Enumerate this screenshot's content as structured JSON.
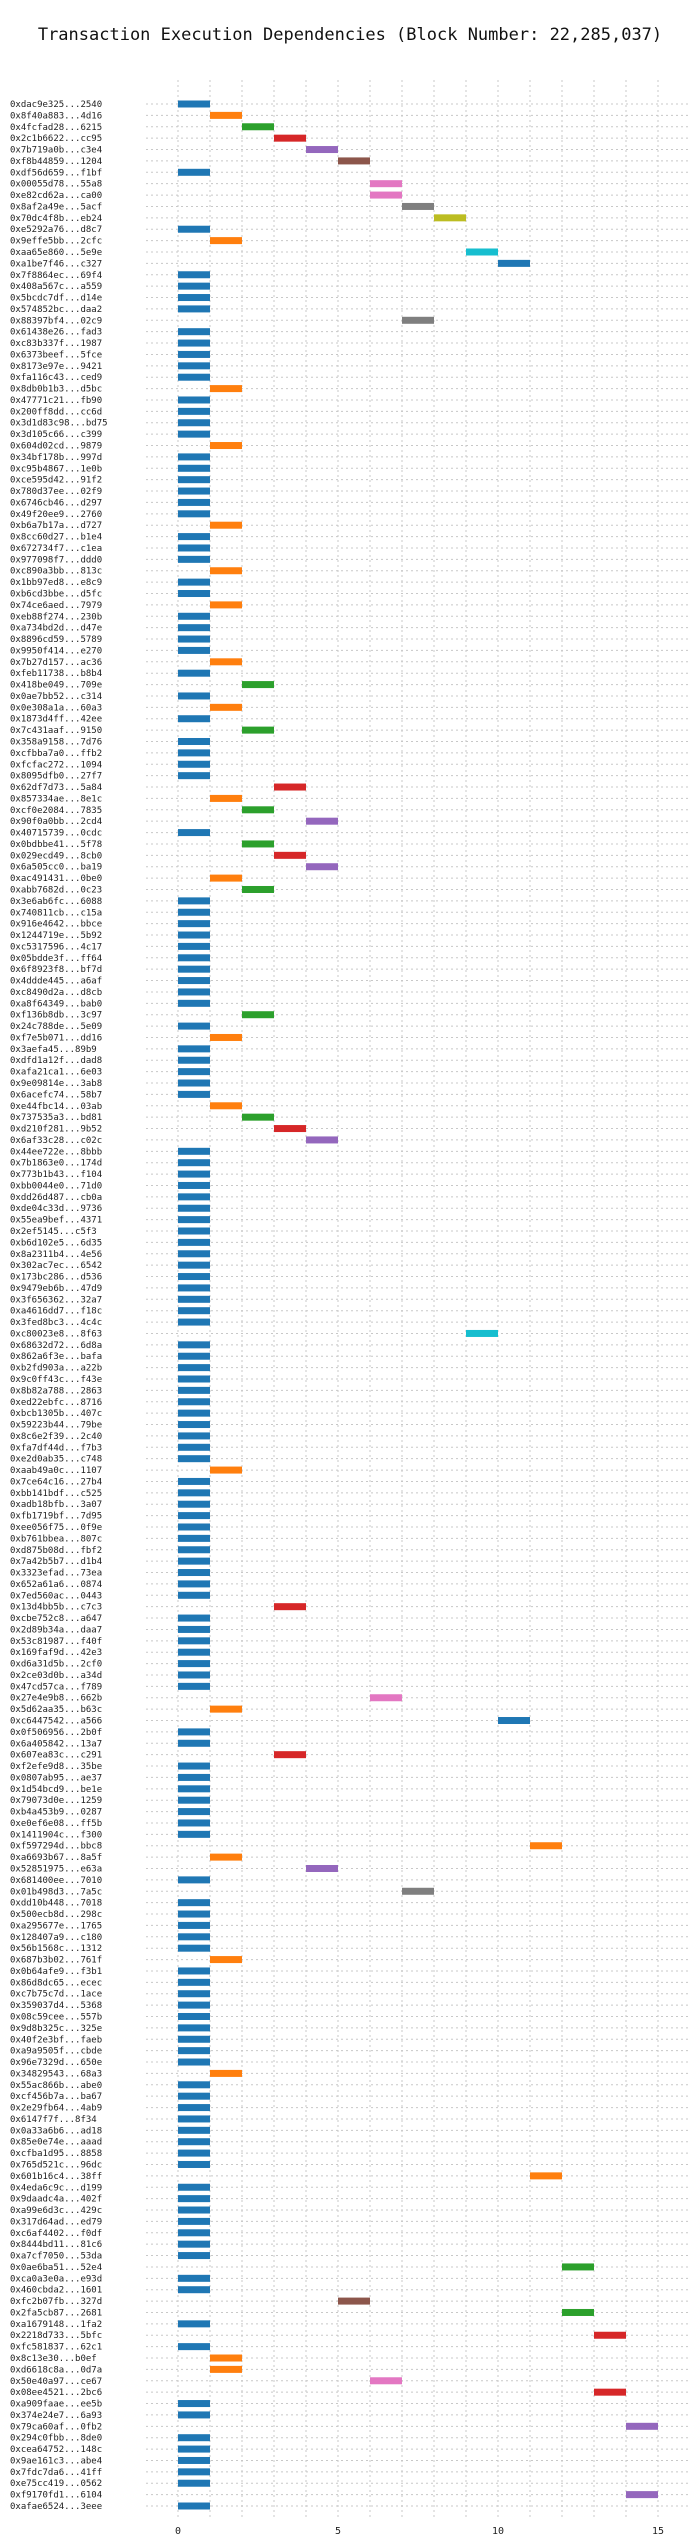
{
  "chart_data": {
    "type": "gantt",
    "title": "Transaction Execution Dependencies (Block Number: 22,285,037)",
    "xlabel": "",
    "ylabel": "",
    "xlim": [
      -1,
      16
    ],
    "xticks": [
      0,
      5,
      10,
      15
    ],
    "grid": true,
    "colors": [
      "#1f77b4",
      "#ff7f0e",
      "#2ca02c",
      "#d62728",
      "#9467bd",
      "#8c564b",
      "#e377c2",
      "#7f7f7f",
      "#bcbd22",
      "#17becf"
    ],
    "tasks": [
      {
        "label": "0xdac9e325...2540",
        "start": 0
      },
      {
        "label": "0x8f40a883...4d16",
        "start": 1
      },
      {
        "label": "0x4fcfad28...6215",
        "start": 2
      },
      {
        "label": "0x2c1b6622...cc95",
        "start": 3
      },
      {
        "label": "0x7b719a0b...c3e4",
        "start": 4
      },
      {
        "label": "0xf8b44859...1204",
        "start": 5
      },
      {
        "label": "0xdf56d659...f1bf",
        "start": 0
      },
      {
        "label": "0x00055d78...55a8",
        "start": 6
      },
      {
        "label": "0xe82cd62a...ca00",
        "start": 6
      },
      {
        "label": "0x8af2a49e...5acf",
        "start": 7
      },
      {
        "label": "0x70dc4f8b...eb24",
        "start": 8
      },
      {
        "label": "0xe5292a76...d8c7",
        "start": 0
      },
      {
        "label": "0x9effe5bb...2cfc",
        "start": 1
      },
      {
        "label": "0xaa65e860...5e9e",
        "start": 9
      },
      {
        "label": "0xa1be7f46...c327",
        "start": 10
      },
      {
        "label": "0x7f8864ec...69f4",
        "start": 0
      },
      {
        "label": "0x408a567c...a559",
        "start": 0
      },
      {
        "label": "0x5bcdc7df...d14e",
        "start": 0
      },
      {
        "label": "0x574852bc...daa2",
        "start": 0
      },
      {
        "label": "0x88397bf4...02c9",
        "start": 7
      },
      {
        "label": "0x61438e26...fad3",
        "start": 0
      },
      {
        "label": "0xc83b337f...1987",
        "start": 0
      },
      {
        "label": "0x6373beef...5fce",
        "start": 0
      },
      {
        "label": "0x8173e97e...9421",
        "start": 0
      },
      {
        "label": "0xfa116c43...ced9",
        "start": 0
      },
      {
        "label": "0x8db0b1b3...d5bc",
        "start": 1
      },
      {
        "label": "0x47771c21...fb90",
        "start": 0
      },
      {
        "label": "0x200ff8dd...cc6d",
        "start": 0
      },
      {
        "label": "0x3d1d83c98...bd75",
        "start": 0
      },
      {
        "label": "0x3d105c66...c399",
        "start": 0
      },
      {
        "label": "0x604d02cd...9879",
        "start": 1
      },
      {
        "label": "0x34bf178b...997d",
        "start": 0
      },
      {
        "label": "0xc95b4867...1e0b",
        "start": 0
      },
      {
        "label": "0xce595d42...91f2",
        "start": 0
      },
      {
        "label": "0x780d37ee...02f9",
        "start": 0
      },
      {
        "label": "0x6746cb46...d297",
        "start": 0
      },
      {
        "label": "0x49f20ee9...2760",
        "start": 0
      },
      {
        "label": "0xb6a7b17a...d727",
        "start": 1
      },
      {
        "label": "0x8cc60d27...b1e4",
        "start": 0
      },
      {
        "label": "0x672734f7...c1ea",
        "start": 0
      },
      {
        "label": "0x977098f7...ddd0",
        "start": 0
      },
      {
        "label": "0xc890a3bb...813c",
        "start": 1
      },
      {
        "label": "0x1bb97ed8...e8c9",
        "start": 0
      },
      {
        "label": "0xb6cd3bbe...d5fc",
        "start": 0
      },
      {
        "label": "0x74ce6aed...7979",
        "start": 1
      },
      {
        "label": "0xeb88f274...230b",
        "start": 0
      },
      {
        "label": "0xa734bd2d...d47e",
        "start": 0
      },
      {
        "label": "0x8896cd59...5789",
        "start": 0
      },
      {
        "label": "0x9950f414...e270",
        "start": 0
      },
      {
        "label": "0x7b27d157...ac36",
        "start": 1
      },
      {
        "label": "0xfeb11738...b8b4",
        "start": 0
      },
      {
        "label": "0x418be049...709e",
        "start": 2
      },
      {
        "label": "0x0ae7bb52...c314",
        "start": 0
      },
      {
        "label": "0x0e308a1a...60a3",
        "start": 1
      },
      {
        "label": "0x1873d4ff...42ee",
        "start": 0
      },
      {
        "label": "0x7c431aaf...9150",
        "start": 2
      },
      {
        "label": "0x358a9158...7d76",
        "start": 0
      },
      {
        "label": "0xcfbba7a0...ffb2",
        "start": 0
      },
      {
        "label": "0xfcfac272...1094",
        "start": 0
      },
      {
        "label": "0x8095dfb0...27f7",
        "start": 0
      },
      {
        "label": "0x62df7d73...5a84",
        "start": 3
      },
      {
        "label": "0x857334ae...8e1c",
        "start": 1
      },
      {
        "label": "0xcf0e2084...7835",
        "start": 2
      },
      {
        "label": "0x90f0a0bb...2cd4",
        "start": 4
      },
      {
        "label": "0x40715739...0cdc",
        "start": 0
      },
      {
        "label": "0x0bdbbe41...5f78",
        "start": 2
      },
      {
        "label": "0x029ecd49...8cb0",
        "start": 3
      },
      {
        "label": "0x6a505cc0...ba19",
        "start": 4
      },
      {
        "label": "0xac491431...0be0",
        "start": 1
      },
      {
        "label": "0xabb7682d...0c23",
        "start": 2
      },
      {
        "label": "0x3e6ab6fc...6088",
        "start": 0
      },
      {
        "label": "0x740811cb...c15a",
        "start": 0
      },
      {
        "label": "0x916e4642...bbce",
        "start": 0
      },
      {
        "label": "0x1244719e...5b92",
        "start": 0
      },
      {
        "label": "0xc5317596...4c17",
        "start": 0
      },
      {
        "label": "0x05bdde3f...ff64",
        "start": 0
      },
      {
        "label": "0x6f8923f8...bf7d",
        "start": 0
      },
      {
        "label": "0x4ddde445...a6af",
        "start": 0
      },
      {
        "label": "0xc8490d2a...d8cb",
        "start": 0
      },
      {
        "label": "0xa8f64349...bab0",
        "start": 0
      },
      {
        "label": "0xf136b8db...3c97",
        "start": 2
      },
      {
        "label": "0x24c788de...5e09",
        "start": 0
      },
      {
        "label": "0xf7e5b071...dd16",
        "start": 1
      },
      {
        "label": "0x3aefa45...89b9",
        "start": 0
      },
      {
        "label": "0xdfd1a12f...dad8",
        "start": 0
      },
      {
        "label": "0xafa21ca1...6e03",
        "start": 0
      },
      {
        "label": "0x9e09814e...3ab8",
        "start": 0
      },
      {
        "label": "0x6acefc74...58b7",
        "start": 0
      },
      {
        "label": "0xe44fbc14...03ab",
        "start": 1
      },
      {
        "label": "0x737535a3...bd81",
        "start": 2
      },
      {
        "label": "0xd210f281...9b52",
        "start": 3
      },
      {
        "label": "0x6af33c28...c02c",
        "start": 4
      },
      {
        "label": "0x44ee722e...8bbb",
        "start": 0
      },
      {
        "label": "0x7b1863e0...174d",
        "start": 0
      },
      {
        "label": "0x773b1b43...f104",
        "start": 0
      },
      {
        "label": "0xbb0044e0...71d0",
        "start": 0
      },
      {
        "label": "0xdd26d487...cb0a",
        "start": 0
      },
      {
        "label": "0xde04c33d...9736",
        "start": 0
      },
      {
        "label": "0x55ea9bef...4371",
        "start": 0
      },
      {
        "label": "0x2ef5145...c5f3",
        "start": 0
      },
      {
        "label": "0xb6d102e5...6d35",
        "start": 0
      },
      {
        "label": "0x8a2311b4...4e56",
        "start": 0
      },
      {
        "label": "0x302ac7ec...6542",
        "start": 0
      },
      {
        "label": "0x173bc286...d536",
        "start": 0
      },
      {
        "label": "0x9479eb6b...47d9",
        "start": 0
      },
      {
        "label": "0x3f656362...32a7",
        "start": 0
      },
      {
        "label": "0xa4616dd7...f18c",
        "start": 0
      },
      {
        "label": "0x3fed8bc3...4c4c",
        "start": 0
      },
      {
        "label": "0xc80023e8...8f63",
        "start": 9
      },
      {
        "label": "0x68632d72...6d8a",
        "start": 0
      },
      {
        "label": "0x862a6f3e...bafa",
        "start": 0
      },
      {
        "label": "0xb2fd903a...a22b",
        "start": 0
      },
      {
        "label": "0x9c0ff43c...f43e",
        "start": 0
      },
      {
        "label": "0x8b82a788...2863",
        "start": 0
      },
      {
        "label": "0xed22ebfc...8716",
        "start": 0
      },
      {
        "label": "0xbcb1305b...407c",
        "start": 0
      },
      {
        "label": "0x59223b44...79be",
        "start": 0
      },
      {
        "label": "0x8c6e2f39...2c40",
        "start": 0
      },
      {
        "label": "0xfa7df44d...f7b3",
        "start": 0
      },
      {
        "label": "0xe2d0ab35...c748",
        "start": 0
      },
      {
        "label": "0xaab49a0c...1107",
        "start": 1
      },
      {
        "label": "0x7ce64c16...27b4",
        "start": 0
      },
      {
        "label": "0xbb141bdf...c525",
        "start": 0
      },
      {
        "label": "0xadb18bfb...3a07",
        "start": 0
      },
      {
        "label": "0xfb1719bf...7d95",
        "start": 0
      },
      {
        "label": "0xee056f75...0f9e",
        "start": 0
      },
      {
        "label": "0xb761bbea...807c",
        "start": 0
      },
      {
        "label": "0xd875b08d...fbf2",
        "start": 0
      },
      {
        "label": "0x7a42b5b7...d1b4",
        "start": 0
      },
      {
        "label": "0x3323efad...73ea",
        "start": 0
      },
      {
        "label": "0x652a61a6...0874",
        "start": 0
      },
      {
        "label": "0x7ed560ac...0443",
        "start": 0
      },
      {
        "label": "0x13d4bb5b...c7c3",
        "start": 3
      },
      {
        "label": "0xcbe752c8...a647",
        "start": 0
      },
      {
        "label": "0x2d89b34a...daa7",
        "start": 0
      },
      {
        "label": "0x53c81987...f40f",
        "start": 0
      },
      {
        "label": "0x169faf9d...42e3",
        "start": 0
      },
      {
        "label": "0xd6a31d5b...2cf0",
        "start": 0
      },
      {
        "label": "0x2ce03d0b...a34d",
        "start": 0
      },
      {
        "label": "0x47cd57ca...f789",
        "start": 0
      },
      {
        "label": "0x27e4e9b8...662b",
        "start": 6
      },
      {
        "label": "0x5d62aa35...b63c",
        "start": 1
      },
      {
        "label": "0xc6447542...a566",
        "start": 10
      },
      {
        "label": "0x0f506956...2b0f",
        "start": 0
      },
      {
        "label": "0x6a405842...13a7",
        "start": 0
      },
      {
        "label": "0x607ea83c...c291",
        "start": 3
      },
      {
        "label": "0xf2efe9d8...35be",
        "start": 0
      },
      {
        "label": "0x0807ab95...ae37",
        "start": 0
      },
      {
        "label": "0x1d54bcd9...be1e",
        "start": 0
      },
      {
        "label": "0x79073d0e...1259",
        "start": 0
      },
      {
        "label": "0xb4a453b9...0287",
        "start": 0
      },
      {
        "label": "0xe0ef6e08...ff5b",
        "start": 0
      },
      {
        "label": "0x1411904c...f300",
        "start": 0
      },
      {
        "label": "0xf597294d...bbc8",
        "start": 11
      },
      {
        "label": "0xa6693b67...8a5f",
        "start": 1
      },
      {
        "label": "0x52851975...e63a",
        "start": 4
      },
      {
        "label": "0x681400ee...7010",
        "start": 0
      },
      {
        "label": "0x01b498d3...7a5c",
        "start": 7
      },
      {
        "label": "0xdd10b448...7018",
        "start": 0
      },
      {
        "label": "0x500ecb8d...298c",
        "start": 0
      },
      {
        "label": "0xa295677e...1765",
        "start": 0
      },
      {
        "label": "0x128407a9...c180",
        "start": 0
      },
      {
        "label": "0x56b1568c...1312",
        "start": 0
      },
      {
        "label": "0x687b3b02...761f",
        "start": 1
      },
      {
        "label": "0x0b64afe9...f3b1",
        "start": 0
      },
      {
        "label": "0x86d8dc65...ecec",
        "start": 0
      },
      {
        "label": "0xc7b75c7d...1ace",
        "start": 0
      },
      {
        "label": "0x359037d4...5368",
        "start": 0
      },
      {
        "label": "0x08c59cee...557b",
        "start": 0
      },
      {
        "label": "0x9d8b325c...325e",
        "start": 0
      },
      {
        "label": "0x40f2e3bf...faeb",
        "start": 0
      },
      {
        "label": "0xa9a9505f...cbde",
        "start": 0
      },
      {
        "label": "0x96e7329d...650e",
        "start": 0
      },
      {
        "label": "0x34829543...68a3",
        "start": 1
      },
      {
        "label": "0x55ac866b...abe0",
        "start": 0
      },
      {
        "label": "0xcf456b7a...ba67",
        "start": 0
      },
      {
        "label": "0x2e29fb64...4ab9",
        "start": 0
      },
      {
        "label": "0x6147f7f...8f34",
        "start": 0
      },
      {
        "label": "0x0a33a6b6...ad18",
        "start": 0
      },
      {
        "label": "0x85e0e74e...aaad",
        "start": 0
      },
      {
        "label": "0xcfba1d95...8858",
        "start": 0
      },
      {
        "label": "0x765d521c...96dc",
        "start": 0
      },
      {
        "label": "0x601b16c4...38ff",
        "start": 11
      },
      {
        "label": "0x4eda6c9c...d199",
        "start": 0
      },
      {
        "label": "0x9daadc4a...402f",
        "start": 0
      },
      {
        "label": "0xa99e6d3c...429c",
        "start": 0
      },
      {
        "label": "0x317d64ad...ed79",
        "start": 0
      },
      {
        "label": "0xc6af4402...f0df",
        "start": 0
      },
      {
        "label": "0x8444bd11...81c6",
        "start": 0
      },
      {
        "label": "0xa7cf7050...53da",
        "start": 0
      },
      {
        "label": "0x0ae6ba51...52e4",
        "start": 12
      },
      {
        "label": "0xca0a3e0a...e93d",
        "start": 0
      },
      {
        "label": "0x460cbda2...1601",
        "start": 0
      },
      {
        "label": "0xfc2b07fb...327d",
        "start": 5
      },
      {
        "label": "0x2fa5cb87...2681",
        "start": 12
      },
      {
        "label": "0xa1679148...1fa2",
        "start": 0
      },
      {
        "label": "0x2218d733...5bfc",
        "start": 13
      },
      {
        "label": "0xfc581837...62c1",
        "start": 0
      },
      {
        "label": "0x8c13e30...b0ef",
        "start": 1
      },
      {
        "label": "0xd6618c8a...0d7a",
        "start": 1
      },
      {
        "label": "0x50e40a97...ce67",
        "start": 6
      },
      {
        "label": "0x08ee4521...2bc6",
        "start": 13
      },
      {
        "label": "0xa909faae...ee5b",
        "start": 0
      },
      {
        "label": "0x374e24e7...6a93",
        "start": 0
      },
      {
        "label": "0x79ca60af...0fb2",
        "start": 14
      },
      {
        "label": "0x294c0fbb...8de0",
        "start": 0
      },
      {
        "label": "0xcea64752...148c",
        "start": 0
      },
      {
        "label": "0x9ae161c3...abe4",
        "start": 0
      },
      {
        "label": "0x7fdc7da6...41ff",
        "start": 0
      },
      {
        "label": "0xe75cc419...0562",
        "start": 0
      },
      {
        "label": "0xf9170fd1...6104",
        "start": 14
      },
      {
        "label": "0xafae6524...3eee",
        "start": 0
      }
    ]
  }
}
